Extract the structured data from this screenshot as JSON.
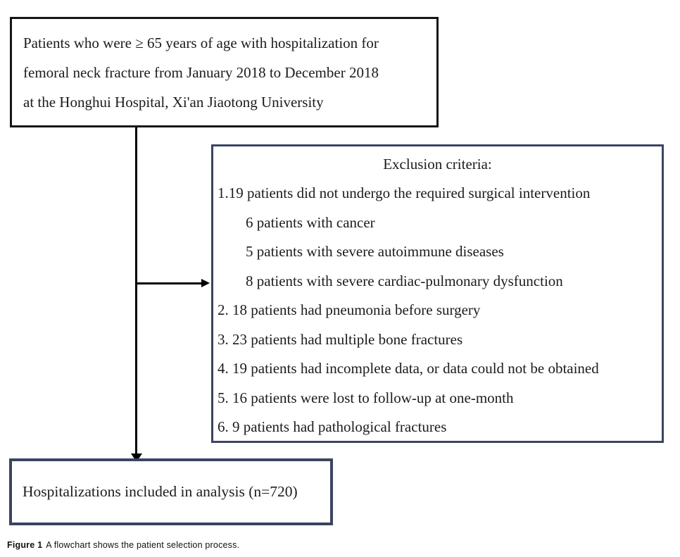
{
  "figure": {
    "eligibility_box": {
      "lines": [
        "Patients who were ≥ 65 years of age with hospitalization for",
        "femoral neck fracture from January 2018 to December 2018",
        "at the Honghui Hospital, Xi'an Jiaotong University"
      ]
    },
    "exclusion_box": {
      "title": "Exclusion criteria:",
      "items": [
        "1.19 patients did not undergo the required surgical intervention",
        "6 patients with cancer",
        "5 patients with severe autoimmune diseases",
        "8 patients with severe cardiac-pulmonary dysfunction",
        "2. 18 patients had pneumonia before surgery",
        "3. 23 patients had multiple bone fractures",
        "4. 19 patients had incomplete data, or data could not be obtained",
        "5. 16 patients were lost to follow-up at one-month",
        "6. 9 patients had pathological fractures"
      ]
    },
    "result_box": {
      "text": "Hospitalizations included in analysis (n=720)"
    },
    "caption": {
      "label": "Figure 1",
      "text": "A flowchart shows the patient selection process."
    }
  },
  "colors": {
    "navy_border": "#3a4561",
    "black_border": "#151515",
    "text": "#1c1c1c",
    "arrow": "#000000",
    "background": "#ffffff"
  }
}
